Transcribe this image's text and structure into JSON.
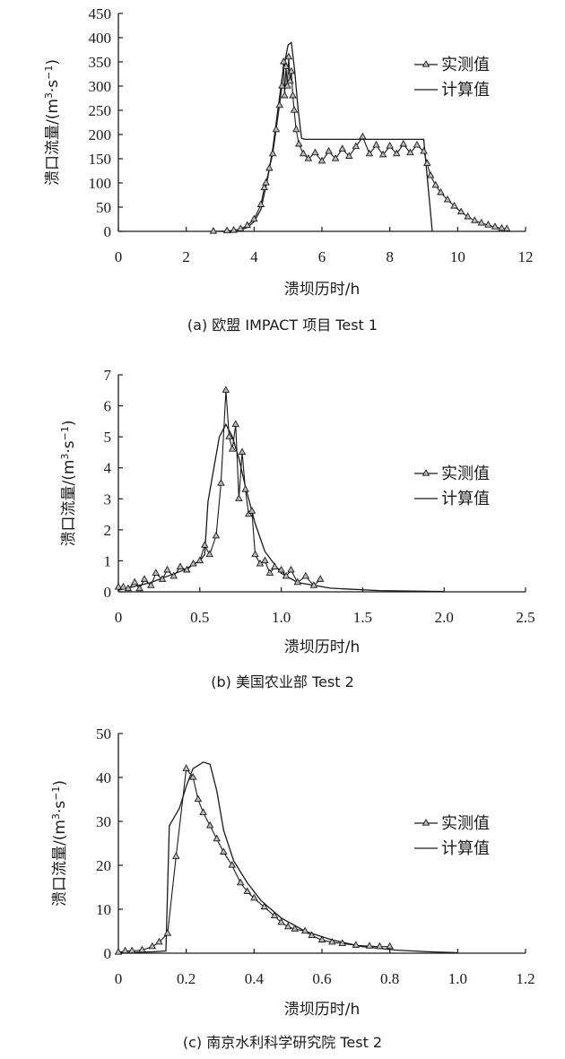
{
  "charts": [
    {
      "type": "line",
      "caption": "(a) 欧盟 IMPACT 项目 Test 1",
      "xlabel": "溃坝历时/h",
      "ylabel_main": "溃口流量/(m",
      "ylabel_sup1": "3",
      "ylabel_mid": "·s",
      "ylabel_sup2": "−1",
      "ylabel_end": ")",
      "xlim": [
        0,
        12
      ],
      "ylim": [
        0,
        450
      ],
      "xticks": [
        0,
        2,
        4,
        6,
        8,
        10,
        12
      ],
      "yticks": [
        0,
        50,
        100,
        150,
        200,
        250,
        300,
        350,
        400,
        450
      ],
      "xtick_labels": [
        "0",
        "2",
        "4",
        "6",
        "8",
        "10",
        "12"
      ],
      "ytick_labels": [
        "0",
        "50",
        "100",
        "150",
        "200",
        "250",
        "300",
        "350",
        "400",
        "450"
      ],
      "legend": {
        "placement": "right",
        "observed": "实测值",
        "computed": "计算值"
      },
      "observed": [
        [
          2.8,
          0
        ],
        [
          3.2,
          1
        ],
        [
          3.4,
          2
        ],
        [
          3.6,
          5
        ],
        [
          3.8,
          12
        ],
        [
          4.0,
          25
        ],
        [
          4.2,
          55
        ],
        [
          4.3,
          90
        ],
        [
          4.35,
          100
        ],
        [
          4.45,
          130
        ],
        [
          4.55,
          160
        ],
        [
          4.65,
          210
        ],
        [
          4.75,
          260
        ],
        [
          4.82,
          300
        ],
        [
          4.87,
          350
        ],
        [
          4.9,
          280
        ],
        [
          4.94,
          340
        ],
        [
          4.98,
          300
        ],
        [
          5.02,
          360
        ],
        [
          5.06,
          310
        ],
        [
          5.1,
          330
        ],
        [
          5.14,
          280
        ],
        [
          5.18,
          250
        ],
        [
          5.24,
          210
        ],
        [
          5.32,
          180
        ],
        [
          5.45,
          160
        ],
        [
          5.6,
          150
        ],
        [
          5.8,
          162
        ],
        [
          6.0,
          145
        ],
        [
          6.2,
          165
        ],
        [
          6.4,
          150
        ],
        [
          6.6,
          170
        ],
        [
          6.8,
          155
        ],
        [
          7.0,
          175
        ],
        [
          7.2,
          195
        ],
        [
          7.4,
          160
        ],
        [
          7.6,
          178
        ],
        [
          7.8,
          158
        ],
        [
          8.0,
          176
        ],
        [
          8.2,
          160
        ],
        [
          8.4,
          180
        ],
        [
          8.6,
          162
        ],
        [
          8.8,
          178
        ],
        [
          9.0,
          165
        ],
        [
          9.1,
          140
        ],
        [
          9.2,
          115
        ],
        [
          9.35,
          95
        ],
        [
          9.5,
          80
        ],
        [
          9.7,
          65
        ],
        [
          9.9,
          52
        ],
        [
          10.1,
          40
        ],
        [
          10.3,
          30
        ],
        [
          10.5,
          22
        ],
        [
          10.7,
          17
        ],
        [
          10.9,
          13
        ],
        [
          11.1,
          9
        ],
        [
          11.3,
          6
        ],
        [
          11.45,
          5
        ]
      ],
      "computed": [
        [
          3.0,
          0
        ],
        [
          3.5,
          1
        ],
        [
          3.8,
          8
        ],
        [
          4.0,
          20
        ],
        [
          4.2,
          45
        ],
        [
          4.4,
          110
        ],
        [
          4.55,
          170
        ],
        [
          4.7,
          250
        ],
        [
          4.85,
          330
        ],
        [
          5.0,
          385
        ],
        [
          5.1,
          390
        ],
        [
          5.2,
          330
        ],
        [
          5.3,
          250
        ],
        [
          5.4,
          192
        ],
        [
          5.5,
          190
        ],
        [
          9.0,
          190
        ],
        [
          9.25,
          0
        ]
      ]
    },
    {
      "type": "line",
      "caption": "(b) 美国农业部 Test 2",
      "xlabel": "溃坝历时/h",
      "ylabel_main": "溃口流量/(m",
      "ylabel_sup1": "3",
      "ylabel_mid": "·s",
      "ylabel_sup2": "−1",
      "ylabel_end": ")",
      "xlim": [
        0,
        2.5
      ],
      "ylim": [
        0,
        7
      ],
      "xticks": [
        0,
        0.5,
        1.0,
        1.5,
        2.0,
        2.5
      ],
      "yticks": [
        0,
        1,
        2,
        3,
        4,
        5,
        6,
        7
      ],
      "xtick_labels": [
        "0",
        "0.5",
        "1.0",
        "1.5",
        "2.0",
        "2.5"
      ],
      "ytick_labels": [
        "0",
        "1",
        "2",
        "3",
        "4",
        "5",
        "6",
        "7"
      ],
      "legend": {
        "placement": "right",
        "observed": "实测值",
        "computed": "计算值"
      },
      "observed": [
        [
          0,
          0.15
        ],
        [
          0.03,
          0.15
        ],
        [
          0.06,
          0.1
        ],
        [
          0.1,
          0.3
        ],
        [
          0.13,
          0.1
        ],
        [
          0.16,
          0.4
        ],
        [
          0.2,
          0.2
        ],
        [
          0.23,
          0.6
        ],
        [
          0.27,
          0.4
        ],
        [
          0.3,
          0.7
        ],
        [
          0.34,
          0.5
        ],
        [
          0.38,
          0.8
        ],
        [
          0.42,
          0.7
        ],
        [
          0.46,
          0.9
        ],
        [
          0.5,
          1.0
        ],
        [
          0.53,
          1.5
        ],
        [
          0.56,
          1.2
        ],
        [
          0.6,
          1.8
        ],
        [
          0.63,
          3.5
        ],
        [
          0.66,
          6.5
        ],
        [
          0.68,
          5.0
        ],
        [
          0.7,
          4.6
        ],
        [
          0.72,
          5.4
        ],
        [
          0.74,
          3.0
        ],
        [
          0.76,
          4.5
        ],
        [
          0.78,
          3.3
        ],
        [
          0.8,
          2.5
        ],
        [
          0.82,
          2.6
        ],
        [
          0.84,
          1.2
        ],
        [
          0.87,
          0.9
        ],
        [
          0.9,
          1.0
        ],
        [
          0.93,
          0.6
        ],
        [
          0.96,
          0.8
        ],
        [
          1.0,
          0.7
        ],
        [
          1.03,
          0.5
        ],
        [
          1.06,
          0.7
        ],
        [
          1.1,
          0.3
        ],
        [
          1.15,
          0.5
        ],
        [
          1.2,
          0.2
        ],
        [
          1.24,
          0.4
        ]
      ],
      "computed": [
        [
          0,
          0.05
        ],
        [
          0.2,
          0.3
        ],
        [
          0.4,
          0.7
        ],
        [
          0.5,
          1.0
        ],
        [
          0.53,
          1.2
        ],
        [
          0.55,
          2.9
        ],
        [
          0.58,
          3.8
        ],
        [
          0.62,
          5.0
        ],
        [
          0.66,
          5.4
        ],
        [
          0.7,
          5.0
        ],
        [
          0.74,
          4.3
        ],
        [
          0.78,
          3.4
        ],
        [
          0.84,
          2.2
        ],
        [
          0.9,
          1.3
        ],
        [
          1.0,
          0.6
        ],
        [
          1.1,
          0.3
        ],
        [
          1.3,
          0.12
        ],
        [
          1.6,
          0.04
        ],
        [
          2.0,
          0.01
        ]
      ]
    },
    {
      "type": "line",
      "caption": "(c) 南京水利科学研究院 Test 2",
      "xlabel": "溃坝历时/h",
      "ylabel_main": "溃口流量/(m",
      "ylabel_sup1": "3",
      "ylabel_mid": "·s",
      "ylabel_sup2": "−1",
      "ylabel_end": ")",
      "xlim": [
        0,
        1.2
      ],
      "ylim": [
        0,
        50
      ],
      "xticks": [
        0,
        0.2,
        0.4,
        0.6,
        0.8,
        1.0,
        1.2
      ],
      "yticks": [
        0,
        10,
        20,
        30,
        40,
        50
      ],
      "xtick_labels": [
        "0",
        "0.2",
        "0.4",
        "0.6",
        "0.8",
        "1.0",
        "1.2"
      ],
      "ytick_labels": [
        "0",
        "10",
        "20",
        "30",
        "40",
        "50"
      ],
      "legend": {
        "placement": "right",
        "observed": "实测值",
        "computed": "计算值"
      },
      "observed": [
        [
          0,
          0.2
        ],
        [
          0.02,
          0.5
        ],
        [
          0.04,
          0.5
        ],
        [
          0.07,
          0.7
        ],
        [
          0.1,
          1.5
        ],
        [
          0.12,
          2.5
        ],
        [
          0.145,
          4.5
        ],
        [
          0.17,
          22
        ],
        [
          0.2,
          42
        ],
        [
          0.22,
          40
        ],
        [
          0.235,
          35
        ],
        [
          0.25,
          32
        ],
        [
          0.27,
          29
        ],
        [
          0.29,
          26
        ],
        [
          0.31,
          23
        ],
        [
          0.335,
          20
        ],
        [
          0.36,
          16
        ],
        [
          0.38,
          14
        ],
        [
          0.4,
          12.5
        ],
        [
          0.43,
          10.5
        ],
        [
          0.46,
          8.5
        ],
        [
          0.48,
          7
        ],
        [
          0.5,
          6
        ],
        [
          0.52,
          5.5
        ],
        [
          0.55,
          5
        ],
        [
          0.57,
          4
        ],
        [
          0.6,
          3
        ],
        [
          0.63,
          2.5
        ],
        [
          0.66,
          2.2
        ],
        [
          0.7,
          1.8
        ],
        [
          0.74,
          1.6
        ],
        [
          0.77,
          1.5
        ],
        [
          0.8,
          1.5
        ]
      ],
      "computed": [
        [
          0,
          0.1
        ],
        [
          0.1,
          0.3
        ],
        [
          0.14,
          0.5
        ],
        [
          0.15,
          29
        ],
        [
          0.18,
          33
        ],
        [
          0.2,
          38
        ],
        [
          0.22,
          42
        ],
        [
          0.25,
          43.5
        ],
        [
          0.27,
          43
        ],
        [
          0.29,
          37
        ],
        [
          0.31,
          28
        ],
        [
          0.34,
          21
        ],
        [
          0.38,
          16
        ],
        [
          0.42,
          12
        ],
        [
          0.48,
          8
        ],
        [
          0.55,
          5
        ],
        [
          0.63,
          3
        ],
        [
          0.72,
          1.5
        ],
        [
          0.82,
          0.7
        ],
        [
          0.92,
          0.3
        ],
        [
          1.0,
          0.1
        ]
      ]
    }
  ]
}
